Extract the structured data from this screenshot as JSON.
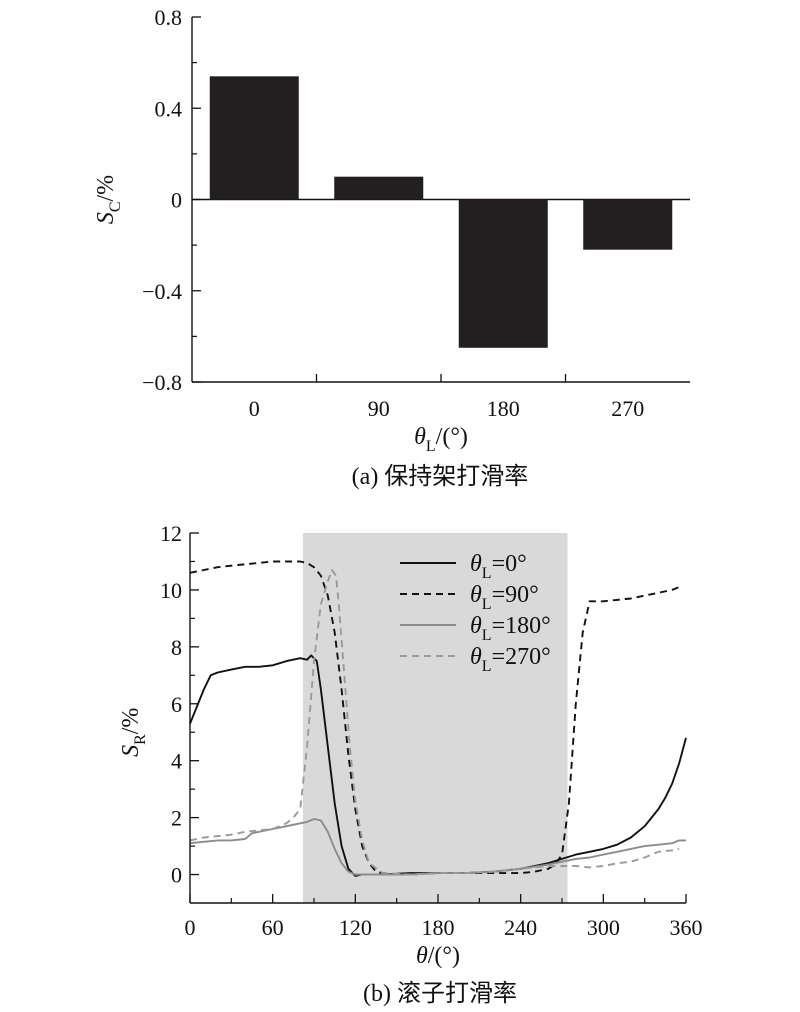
{
  "chart_data": [
    {
      "type": "bar",
      "caption": "(a) 保持架打滑率",
      "ylabel": {
        "symbol": "S",
        "sub": "C",
        "unit": "/%"
      },
      "xlabel": {
        "symbol": "θ",
        "sub": "L",
        "unit": "/(°)"
      },
      "categories": [
        "0",
        "90",
        "180",
        "270"
      ],
      "values": [
        0.54,
        0.1,
        -0.65,
        -0.22
      ],
      "ylim": [
        -0.8,
        0.8
      ],
      "yticks": [
        -0.8,
        -0.4,
        0,
        0.4,
        0.8
      ],
      "ytick_labels": [
        "−0.8",
        "−0.4",
        "0",
        "0.4",
        "0.8"
      ],
      "bar_color": "#231f20",
      "grid": false
    },
    {
      "type": "line",
      "caption": "(b) 滚子打滑率",
      "ylabel": {
        "symbol": "S",
        "sub": "R",
        "unit": "/%"
      },
      "xlabel": {
        "symbol": "θ",
        "sub": "",
        "unit": "/(°)"
      },
      "xlim": [
        0,
        360
      ],
      "ylim": [
        -1,
        12
      ],
      "xticks": [
        0,
        60,
        120,
        180,
        240,
        300,
        360
      ],
      "yticks": [
        0,
        2,
        4,
        6,
        8,
        10,
        12
      ],
      "shaded_region": {
        "x": [
          82,
          274
        ],
        "color": "#d9d9d9"
      },
      "legend_position": "top-right",
      "grid": false,
      "series": [
        {
          "name": "θL=0°",
          "legend": {
            "symbol": "θ",
            "sub": "L",
            "rest": "=0°"
          },
          "color": "#111111",
          "dash": "solid",
          "x": [
            0,
            5,
            10,
            15,
            20,
            30,
            40,
            50,
            60,
            70,
            80,
            85,
            88,
            92,
            95,
            100,
            105,
            110,
            115,
            120,
            125,
            130,
            140,
            160,
            180,
            200,
            220,
            240,
            250,
            260,
            270,
            280,
            290,
            300,
            310,
            320,
            330,
            340,
            345,
            350,
            355,
            360
          ],
          "y": [
            5.3,
            5.9,
            6.5,
            7.0,
            7.1,
            7.2,
            7.3,
            7.3,
            7.35,
            7.5,
            7.6,
            7.55,
            7.7,
            7.5,
            6.5,
            4.5,
            2.5,
            1.0,
            0.2,
            -0.05,
            0.0,
            0.0,
            0.0,
            0.05,
            0.05,
            0.05,
            0.1,
            0.2,
            0.3,
            0.4,
            0.55,
            0.7,
            0.8,
            0.9,
            1.05,
            1.3,
            1.7,
            2.3,
            2.7,
            3.2,
            3.9,
            4.8
          ]
        },
        {
          "name": "θL=90°",
          "legend": {
            "symbol": "θ",
            "sub": "L",
            "rest": "=90°"
          },
          "color": "#111111",
          "dash": "dashed",
          "x": [
            0,
            10,
            20,
            30,
            40,
            50,
            60,
            70,
            80,
            85,
            90,
            95,
            100,
            105,
            110,
            115,
            120,
            125,
            130,
            135,
            140,
            150,
            160,
            180,
            200,
            220,
            240,
            250,
            260,
            265,
            270,
            275,
            280,
            285,
            290,
            300,
            310,
            320,
            330,
            340,
            350,
            355
          ],
          "y": [
            10.6,
            10.7,
            10.8,
            10.85,
            10.9,
            10.95,
            11.0,
            11.0,
            11.0,
            10.95,
            10.8,
            10.5,
            9.8,
            8.5,
            6.5,
            4.2,
            2.3,
            1.0,
            0.4,
            0.1,
            0.05,
            0.0,
            0.0,
            0.05,
            0.05,
            0.05,
            0.05,
            0.1,
            0.2,
            0.35,
            0.7,
            2.5,
            6.0,
            8.5,
            9.6,
            9.6,
            9.65,
            9.7,
            9.8,
            9.9,
            10.0,
            10.1
          ]
        },
        {
          "name": "θL=180°",
          "legend": {
            "symbol": "θ",
            "sub": "L",
            "rest": "=180°"
          },
          "color": "#8c8c8c",
          "dash": "solid",
          "x": [
            0,
            10,
            20,
            30,
            40,
            45,
            50,
            60,
            70,
            80,
            85,
            90,
            95,
            100,
            105,
            110,
            115,
            120,
            125,
            130,
            140,
            160,
            180,
            200,
            220,
            240,
            260,
            270,
            280,
            290,
            300,
            310,
            320,
            330,
            340,
            350,
            355,
            360
          ],
          "y": [
            1.1,
            1.15,
            1.2,
            1.2,
            1.25,
            1.45,
            1.5,
            1.6,
            1.7,
            1.8,
            1.85,
            1.95,
            1.9,
            1.5,
            0.9,
            0.4,
            0.1,
            0.0,
            0.0,
            0.0,
            0.0,
            0.0,
            0.05,
            0.05,
            0.1,
            0.2,
            0.35,
            0.45,
            0.55,
            0.6,
            0.7,
            0.8,
            0.9,
            1.0,
            1.05,
            1.1,
            1.2,
            1.2
          ]
        },
        {
          "name": "θL=270°",
          "legend": {
            "symbol": "θ",
            "sub": "L",
            "rest": "=270°"
          },
          "color": "#9a9a9a",
          "dash": "dashed",
          "x": [
            0,
            10,
            20,
            30,
            40,
            50,
            60,
            70,
            75,
            80,
            85,
            90,
            95,
            100,
            103,
            106,
            108,
            112,
            116,
            120,
            125,
            130,
            140,
            160,
            180,
            200,
            220,
            240,
            260,
            270,
            280,
            290,
            300,
            310,
            320,
            330,
            340,
            350,
            355
          ],
          "y": [
            1.2,
            1.3,
            1.35,
            1.4,
            1.5,
            1.55,
            1.6,
            1.8,
            2.0,
            2.3,
            4.5,
            7.5,
            9.5,
            10.3,
            10.7,
            10.5,
            9.5,
            7.0,
            4.5,
            2.6,
            1.2,
            0.4,
            0.05,
            0.0,
            0.05,
            0.05,
            0.1,
            0.2,
            0.3,
            0.3,
            0.3,
            0.25,
            0.3,
            0.4,
            0.45,
            0.6,
            0.8,
            0.85,
            0.9
          ]
        }
      ]
    }
  ]
}
